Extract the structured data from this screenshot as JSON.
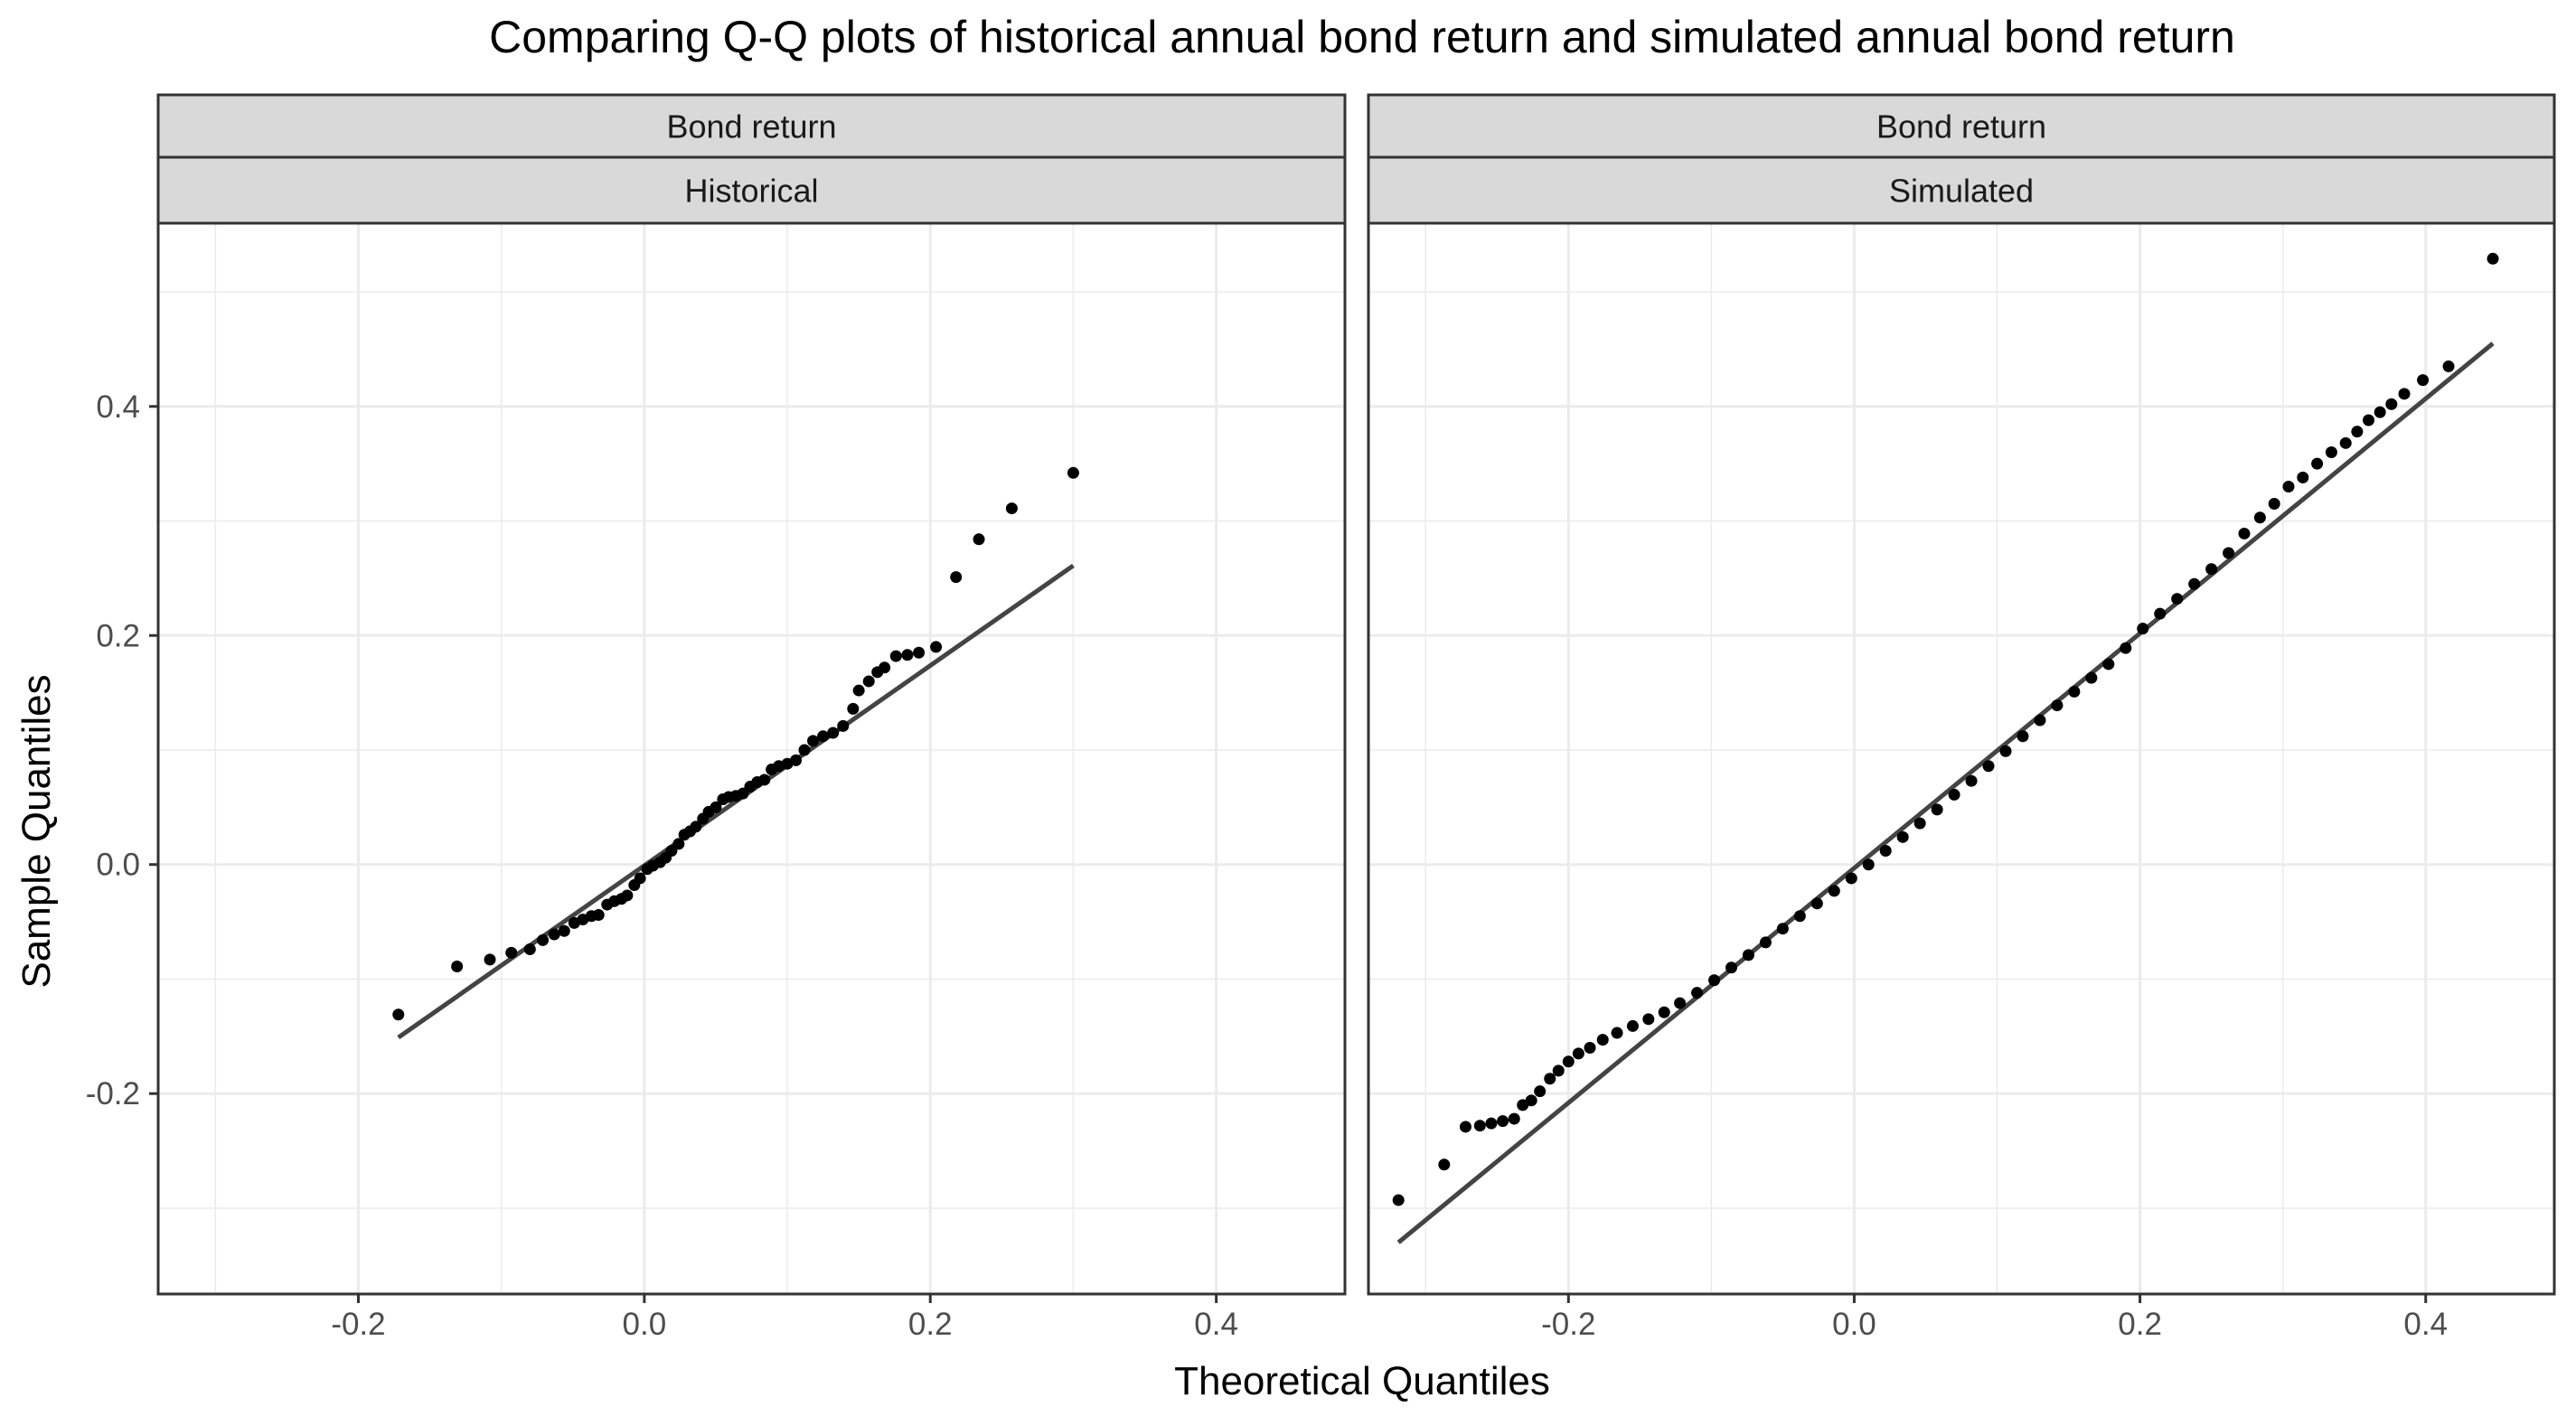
{
  "chart_data": {
    "type": "scatter",
    "title": "Comparing Q-Q plots of historical annual bond return and simulated annual bond return",
    "xlabel": "Theoretical Quantiles",
    "ylabel": "Sample Quantiles",
    "xlim": [
      -0.34,
      0.49
    ],
    "ylim": [
      -0.375,
      0.56
    ],
    "x_ticks": [
      -0.2,
      0.0,
      0.2,
      0.4
    ],
    "x_tick_labels": [
      "-0.2",
      "0.0",
      "0.2",
      "0.4"
    ],
    "y_ticks": [
      -0.2,
      0.0,
      0.2,
      0.4
    ],
    "y_tick_labels": [
      "-0.2",
      "0.0",
      "0.2",
      "0.4"
    ],
    "grid": true,
    "colors": {
      "points": "#000000",
      "line": "#444444",
      "strip_bg": "#d9d9d9",
      "grid": "#ebebeb",
      "border": "#333333"
    },
    "panels": [
      {
        "strip_top": "Bond return",
        "strip_bottom": "Historical",
        "points": [
          [
            -0.172,
            -0.131
          ],
          [
            -0.131,
            -0.089
          ],
          [
            -0.108,
            -0.083
          ],
          [
            -0.093,
            -0.077
          ],
          [
            -0.08,
            -0.074
          ],
          [
            -0.071,
            -0.066
          ],
          [
            -0.063,
            -0.061
          ],
          [
            -0.056,
            -0.058
          ],
          [
            -0.049,
            -0.051
          ],
          [
            -0.043,
            -0.048
          ],
          [
            -0.037,
            -0.045
          ],
          [
            -0.032,
            -0.044
          ],
          [
            -0.026,
            -0.035
          ],
          [
            -0.021,
            -0.032
          ],
          [
            -0.016,
            -0.03
          ],
          [
            -0.012,
            -0.027
          ],
          [
            -0.007,
            -0.018
          ],
          [
            -0.003,
            -0.012
          ],
          [
            0.002,
            -0.004
          ],
          [
            0.006,
            -0.001
          ],
          [
            0.011,
            0.002
          ],
          [
            0.015,
            0.006
          ],
          [
            0.019,
            0.012
          ],
          [
            0.024,
            0.018
          ],
          [
            0.028,
            0.026
          ],
          [
            0.032,
            0.029
          ],
          [
            0.036,
            0.033
          ],
          [
            0.041,
            0.04
          ],
          [
            0.045,
            0.046
          ],
          [
            0.05,
            0.05
          ],
          [
            0.055,
            0.057
          ],
          [
            0.059,
            0.059
          ],
          [
            0.064,
            0.06
          ],
          [
            0.069,
            0.062
          ],
          [
            0.074,
            0.068
          ],
          [
            0.079,
            0.072
          ],
          [
            0.084,
            0.074
          ],
          [
            0.089,
            0.083
          ],
          [
            0.094,
            0.086
          ],
          [
            0.1,
            0.088
          ],
          [
            0.106,
            0.091
          ],
          [
            0.112,
            0.1
          ],
          [
            0.118,
            0.108
          ],
          [
            0.125,
            0.112
          ],
          [
            0.132,
            0.115
          ],
          [
            0.139,
            0.121
          ],
          [
            0.146,
            0.136
          ],
          [
            0.15,
            0.152
          ],
          [
            0.157,
            0.16
          ],
          [
            0.163,
            0.168
          ],
          [
            0.168,
            0.172
          ],
          [
            0.176,
            0.182
          ],
          [
            0.184,
            0.183
          ],
          [
            0.192,
            0.185
          ],
          [
            0.204,
            0.19
          ],
          [
            0.218,
            0.251
          ],
          [
            0.234,
            0.284
          ],
          [
            0.257,
            0.311
          ],
          [
            0.3,
            0.342
          ]
        ],
        "line": [
          [
            -0.172,
            -0.151
          ],
          [
            0.3,
            0.261
          ]
        ]
      },
      {
        "strip_top": "Bond return",
        "strip_bottom": "Simulated",
        "points": [
          [
            -0.319,
            -0.293
          ],
          [
            -0.287,
            -0.262
          ],
          [
            -0.272,
            -0.229
          ],
          [
            -0.262,
            -0.228
          ],
          [
            -0.254,
            -0.226
          ],
          [
            -0.246,
            -0.224
          ],
          [
            -0.238,
            -0.222
          ],
          [
            -0.232,
            -0.21
          ],
          [
            -0.226,
            -0.206
          ],
          [
            -0.22,
            -0.198
          ],
          [
            -0.213,
            -0.187
          ],
          [
            -0.207,
            -0.18
          ],
          [
            -0.2,
            -0.172
          ],
          [
            -0.193,
            -0.165
          ],
          [
            -0.185,
            -0.16
          ],
          [
            -0.176,
            -0.153
          ],
          [
            -0.166,
            -0.147
          ],
          [
            -0.155,
            -0.141
          ],
          [
            -0.144,
            -0.135
          ],
          [
            -0.133,
            -0.129
          ],
          [
            -0.122,
            -0.121
          ],
          [
            -0.11,
            -0.112
          ],
          [
            -0.098,
            -0.101
          ],
          [
            -0.086,
            -0.09
          ],
          [
            -0.074,
            -0.079
          ],
          [
            -0.062,
            -0.068
          ],
          [
            -0.05,
            -0.056
          ],
          [
            -0.038,
            -0.045
          ],
          [
            -0.026,
            -0.034
          ],
          [
            -0.014,
            -0.023
          ],
          [
            -0.002,
            -0.012
          ],
          [
            0.01,
            0.0
          ],
          [
            0.022,
            0.012
          ],
          [
            0.034,
            0.024
          ],
          [
            0.046,
            0.036
          ],
          [
            0.058,
            0.048
          ],
          [
            0.07,
            0.061
          ],
          [
            0.082,
            0.073
          ],
          [
            0.094,
            0.086
          ],
          [
            0.106,
            0.099
          ],
          [
            0.118,
            0.112
          ],
          [
            0.13,
            0.126
          ],
          [
            0.142,
            0.139
          ],
          [
            0.154,
            0.151
          ],
          [
            0.166,
            0.163
          ],
          [
            0.178,
            0.175
          ],
          [
            0.19,
            0.189
          ],
          [
            0.202,
            0.206
          ],
          [
            0.214,
            0.219
          ],
          [
            0.226,
            0.232
          ],
          [
            0.238,
            0.245
          ],
          [
            0.25,
            0.258
          ],
          [
            0.262,
            0.272
          ],
          [
            0.273,
            0.289
          ],
          [
            0.284,
            0.303
          ],
          [
            0.294,
            0.315
          ],
          [
            0.304,
            0.33
          ],
          [
            0.314,
            0.338
          ],
          [
            0.324,
            0.35
          ],
          [
            0.334,
            0.36
          ],
          [
            0.344,
            0.368
          ],
          [
            0.352,
            0.378
          ],
          [
            0.36,
            0.388
          ],
          [
            0.368,
            0.395
          ],
          [
            0.376,
            0.402
          ],
          [
            0.385,
            0.411
          ],
          [
            0.398,
            0.423
          ],
          [
            0.416,
            0.435
          ],
          [
            0.447,
            0.529
          ]
        ],
        "line": [
          [
            -0.319,
            -0.33
          ],
          [
            0.447,
            0.455
          ]
        ]
      }
    ]
  }
}
